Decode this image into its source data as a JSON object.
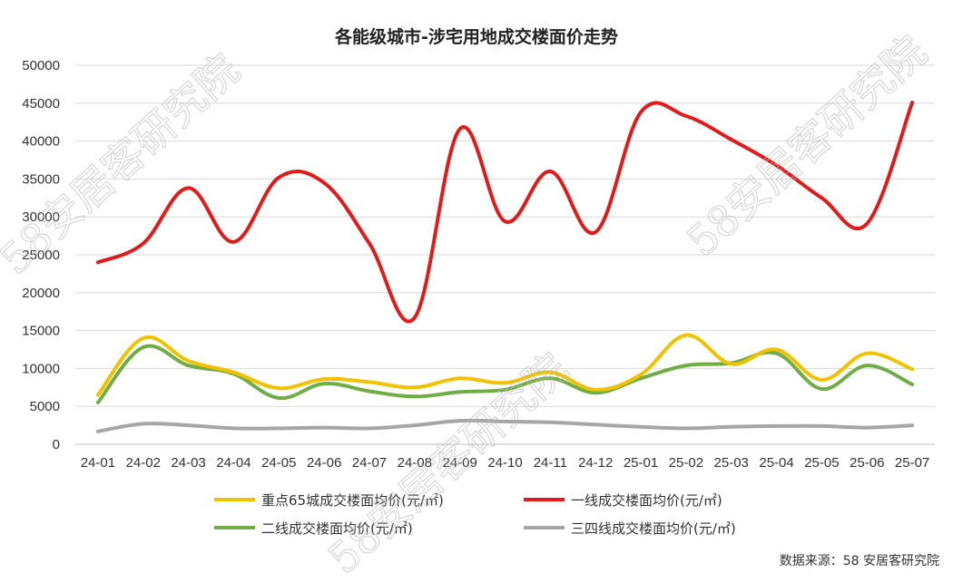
{
  "chart_data": {
    "type": "line",
    "title": "各能级城市-涉宅用地成交楼面价走势",
    "xlabel": "",
    "ylabel": "",
    "ylim": [
      0,
      50000
    ],
    "yticks": [
      "0",
      "5000",
      "10000",
      "15000",
      "20000",
      "25000",
      "30000",
      "35000",
      "40000",
      "45000",
      "50000"
    ],
    "categories": [
      "24-01",
      "24-02",
      "24-03",
      "24-04",
      "24-05",
      "24-06",
      "24-07",
      "24-08",
      "24-09",
      "24-10",
      "24-11",
      "24-12",
      "25-01",
      "25-02",
      "25-03",
      "25-04",
      "25-05",
      "25-06",
      "25-07"
    ],
    "grid": "horizontal",
    "legend_position": "bottom",
    "series": [
      {
        "name": "重点65城成交楼面均价(元/㎡)",
        "color": "#F2C200",
        "values": [
          6500,
          14000,
          11000,
          9500,
          7400,
          8600,
          8200,
          7500,
          8700,
          8100,
          9500,
          7200,
          9200,
          14400,
          10600,
          12500,
          8500,
          12000,
          9900
        ]
      },
      {
        "name": "一线成交楼面均价(元/㎡)",
        "color": "#E11A1A",
        "values": [
          24000,
          26500,
          33800,
          26700,
          35200,
          34500,
          26500,
          16700,
          41600,
          29400,
          36000,
          28000,
          43800,
          43300,
          40200,
          36800,
          32500,
          29100,
          45100
        ]
      },
      {
        "name": "二线成交楼面均价(元/㎡)",
        "color": "#70AD47",
        "values": [
          5500,
          12800,
          10400,
          9300,
          6100,
          8000,
          7000,
          6300,
          6900,
          7200,
          8700,
          6800,
          8700,
          10400,
          10700,
          12000,
          7300,
          10400,
          7900
        ]
      },
      {
        "name": "三四线成交楼面均价(元/㎡)",
        "color": "#A6A6A6",
        "values": [
          1700,
          2700,
          2500,
          2100,
          2100,
          2200,
          2100,
          2500,
          3100,
          3000,
          2900,
          2600,
          2300,
          2100,
          2300,
          2400,
          2400,
          2200,
          2500
        ]
      }
    ]
  },
  "source_text": "数据来源：58 安居客研究院",
  "watermark_text": "58安居客研究院"
}
